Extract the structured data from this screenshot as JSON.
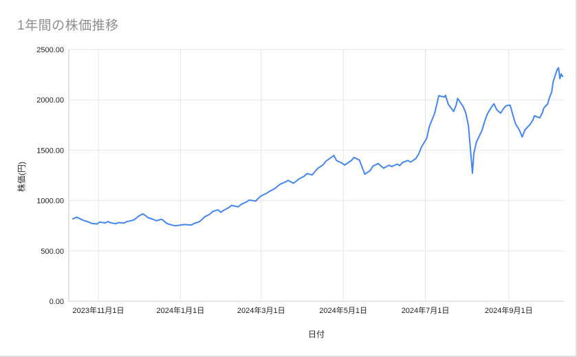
{
  "chart_data": {
    "type": "line",
    "title": "1年間の株価推移",
    "xlabel": "日付",
    "ylabel": "株価(円)",
    "legend": "none",
    "grid": true,
    "x_range": [
      "2023-10-10",
      "2024-10-12"
    ],
    "y_range": [
      0,
      2500
    ],
    "y_ticks": [
      {
        "value": 0,
        "label": "0.00"
      },
      {
        "value": 500,
        "label": "500.00"
      },
      {
        "value": 1000,
        "label": "1000.00"
      },
      {
        "value": 1500,
        "label": "1500.00"
      },
      {
        "value": 2000,
        "label": "2000.00"
      },
      {
        "value": 2500,
        "label": "2500.00"
      }
    ],
    "x_ticks": [
      {
        "date": "2023-11-01",
        "label": "2023年11月1日"
      },
      {
        "date": "2024-01-01",
        "label": "2024年1月1日"
      },
      {
        "date": "2024-03-01",
        "label": "2024年3月1日"
      },
      {
        "date": "2024-05-01",
        "label": "2024年5月1日"
      },
      {
        "date": "2024-07-01",
        "label": "2024年7月1日"
      },
      {
        "date": "2024-09-01",
        "label": "2024年9月1日"
      }
    ],
    "series": [
      {
        "name": "株価",
        "color": "#4285f4",
        "dates": [
          "2023-10-13",
          "2023-10-16",
          "2023-10-18",
          "2023-10-20",
          "2023-10-24",
          "2023-10-27",
          "2023-10-31",
          "2023-11-02",
          "2023-11-06",
          "2023-11-08",
          "2023-11-10",
          "2023-11-14",
          "2023-11-16",
          "2023-11-20",
          "2023-11-22",
          "2023-11-27",
          "2023-11-29",
          "2023-12-01",
          "2023-12-04",
          "2023-12-06",
          "2023-12-08",
          "2023-12-12",
          "2023-12-14",
          "2023-12-18",
          "2023-12-20",
          "2023-12-22",
          "2023-12-26",
          "2023-12-28",
          "2024-01-04",
          "2024-01-09",
          "2024-01-11",
          "2024-01-15",
          "2024-01-17",
          "2024-01-19",
          "2024-01-23",
          "2024-01-25",
          "2024-01-29",
          "2024-01-31",
          "2024-02-02",
          "2024-02-06",
          "2024-02-08",
          "2024-02-13",
          "2024-02-15",
          "2024-02-19",
          "2024-02-21",
          "2024-02-26",
          "2024-02-28",
          "2024-03-01",
          "2024-03-05",
          "2024-03-07",
          "2024-03-11",
          "2024-03-13",
          "2024-03-15",
          "2024-03-19",
          "2024-03-21",
          "2024-03-25",
          "2024-03-27",
          "2024-03-29",
          "2024-04-02",
          "2024-04-04",
          "2024-04-08",
          "2024-04-10",
          "2024-04-12",
          "2024-04-16",
          "2024-04-18",
          "2024-04-22",
          "2024-04-24",
          "2024-04-26",
          "2024-04-30",
          "2024-05-02",
          "2024-05-07",
          "2024-05-09",
          "2024-05-13",
          "2024-05-15",
          "2024-05-17",
          "2024-05-21",
          "2024-05-23",
          "2024-05-27",
          "2024-05-29",
          "2024-05-31",
          "2024-06-04",
          "2024-06-06",
          "2024-06-10",
          "2024-06-12",
          "2024-06-14",
          "2024-06-18",
          "2024-06-20",
          "2024-06-24",
          "2024-06-26",
          "2024-06-28",
          "2024-07-02",
          "2024-07-04",
          "2024-07-08",
          "2024-07-10",
          "2024-07-11",
          "2024-07-15",
          "2024-07-16",
          "2024-07-18",
          "2024-07-22",
          "2024-07-24",
          "2024-07-25",
          "2024-07-29",
          "2024-07-31",
          "2024-08-01",
          "2024-08-02",
          "2024-08-05",
          "2024-08-06",
          "2024-08-08",
          "2024-08-12",
          "2024-08-14",
          "2024-08-16",
          "2024-08-19",
          "2024-08-21",
          "2024-08-23",
          "2024-08-26",
          "2024-08-28",
          "2024-08-30",
          "2024-09-02",
          "2024-09-04",
          "2024-09-06",
          "2024-09-09",
          "2024-09-11",
          "2024-09-13",
          "2024-09-17",
          "2024-09-19",
          "2024-09-20",
          "2024-09-24",
          "2024-09-26",
          "2024-09-27",
          "2024-09-30",
          "2024-10-01",
          "2024-10-03",
          "2024-10-04",
          "2024-10-07",
          "2024-10-08",
          "2024-10-09",
          "2024-10-10",
          "2024-10-11"
        ],
        "values": [
          818,
          835,
          822,
          808,
          790,
          774,
          768,
          786,
          778,
          792,
          780,
          770,
          782,
          776,
          790,
          806,
          824,
          846,
          868,
          852,
          830,
          812,
          800,
          814,
          795,
          772,
          756,
          750,
          762,
          756,
          772,
          790,
          812,
          838,
          866,
          892,
          908,
          884,
          902,
          930,
          952,
          938,
          962,
          986,
          1005,
          995,
          1024,
          1048,
          1072,
          1090,
          1118,
          1140,
          1162,
          1185,
          1200,
          1172,
          1192,
          1215,
          1242,
          1268,
          1255,
          1288,
          1320,
          1355,
          1390,
          1428,
          1448,
          1398,
          1372,
          1352,
          1398,
          1428,
          1402,
          1332,
          1262,
          1298,
          1342,
          1368,
          1344,
          1322,
          1352,
          1338,
          1362,
          1348,
          1378,
          1398,
          1382,
          1418,
          1462,
          1528,
          1618,
          1735,
          1870,
          1985,
          2042,
          2028,
          2045,
          1958,
          1885,
          1952,
          2015,
          1935,
          1872,
          1810,
          1748,
          1272,
          1465,
          1582,
          1695,
          1782,
          1858,
          1925,
          1962,
          1902,
          1868,
          1912,
          1942,
          1948,
          1852,
          1762,
          1698,
          1632,
          1702,
          1758,
          1802,
          1842,
          1822,
          1872,
          1918,
          1962,
          2012,
          2085,
          2180,
          2302,
          2318,
          2212,
          2258,
          2232
        ]
      }
    ],
    "colors": {
      "line": "#4285f4",
      "grid_line": "#e6e6e6",
      "axis_line": "#cccccc",
      "tick_text": "#1f1f1f",
      "axis_title_text": "#2b2b2b",
      "title_text": "#8f8f8f",
      "background": "#ffffff"
    }
  }
}
